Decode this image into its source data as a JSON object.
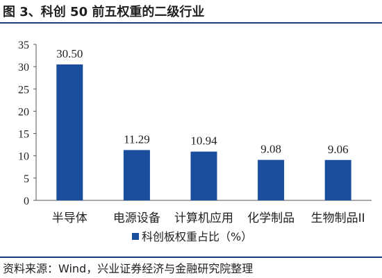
{
  "title": "图 3、科创 50 前五权重的二级行业",
  "source": "资料来源：Wind，兴业证券经济与金融研究院整理",
  "chart_data": {
    "type": "bar",
    "categories": [
      "半导体",
      "电源设备",
      "计算机应用",
      "化学制品",
      "生物制品II"
    ],
    "series": [
      {
        "name": "科创板权重占比（%）",
        "values": [
          30.5,
          11.29,
          10.94,
          9.08,
          9.06
        ],
        "color": "#1a4e9c"
      }
    ],
    "data_labels": [
      "30.50",
      "11.29",
      "10.94",
      "9.08",
      "9.06"
    ],
    "ylim": [
      0,
      35
    ],
    "yticks": [
      0,
      5,
      10,
      15,
      20,
      25,
      30,
      35
    ],
    "xlabel": "",
    "ylabel": "",
    "grid": false,
    "legend_position": "bottom"
  }
}
